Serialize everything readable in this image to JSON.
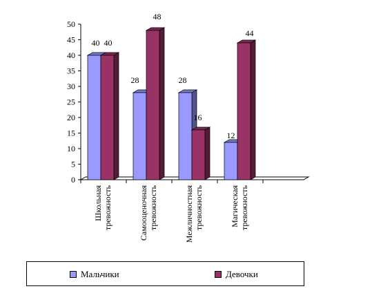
{
  "chart_data": {
    "type": "bar",
    "categories": [
      [
        "Школьная",
        "тревожность"
      ],
      [
        "Самооценочная",
        "тревожность"
      ],
      [
        "Межличностная",
        "тревожность"
      ],
      [
        "Магическая",
        "тревожность"
      ]
    ],
    "series": [
      {
        "name": "Мальчики",
        "values": [
          40,
          28,
          28,
          12
        ],
        "color": "#9999ff"
      },
      {
        "name": "Девочки",
        "values": [
          40,
          48,
          16,
          44
        ],
        "color": "#993366"
      }
    ],
    "ylim": [
      0,
      50
    ],
    "yticks": [
      "0",
      "5",
      "10",
      "15",
      "20",
      "25",
      "30",
      "35",
      "40",
      "45",
      "50"
    ],
    "grid": false,
    "legend_position": "bottom",
    "three_d": true
  }
}
